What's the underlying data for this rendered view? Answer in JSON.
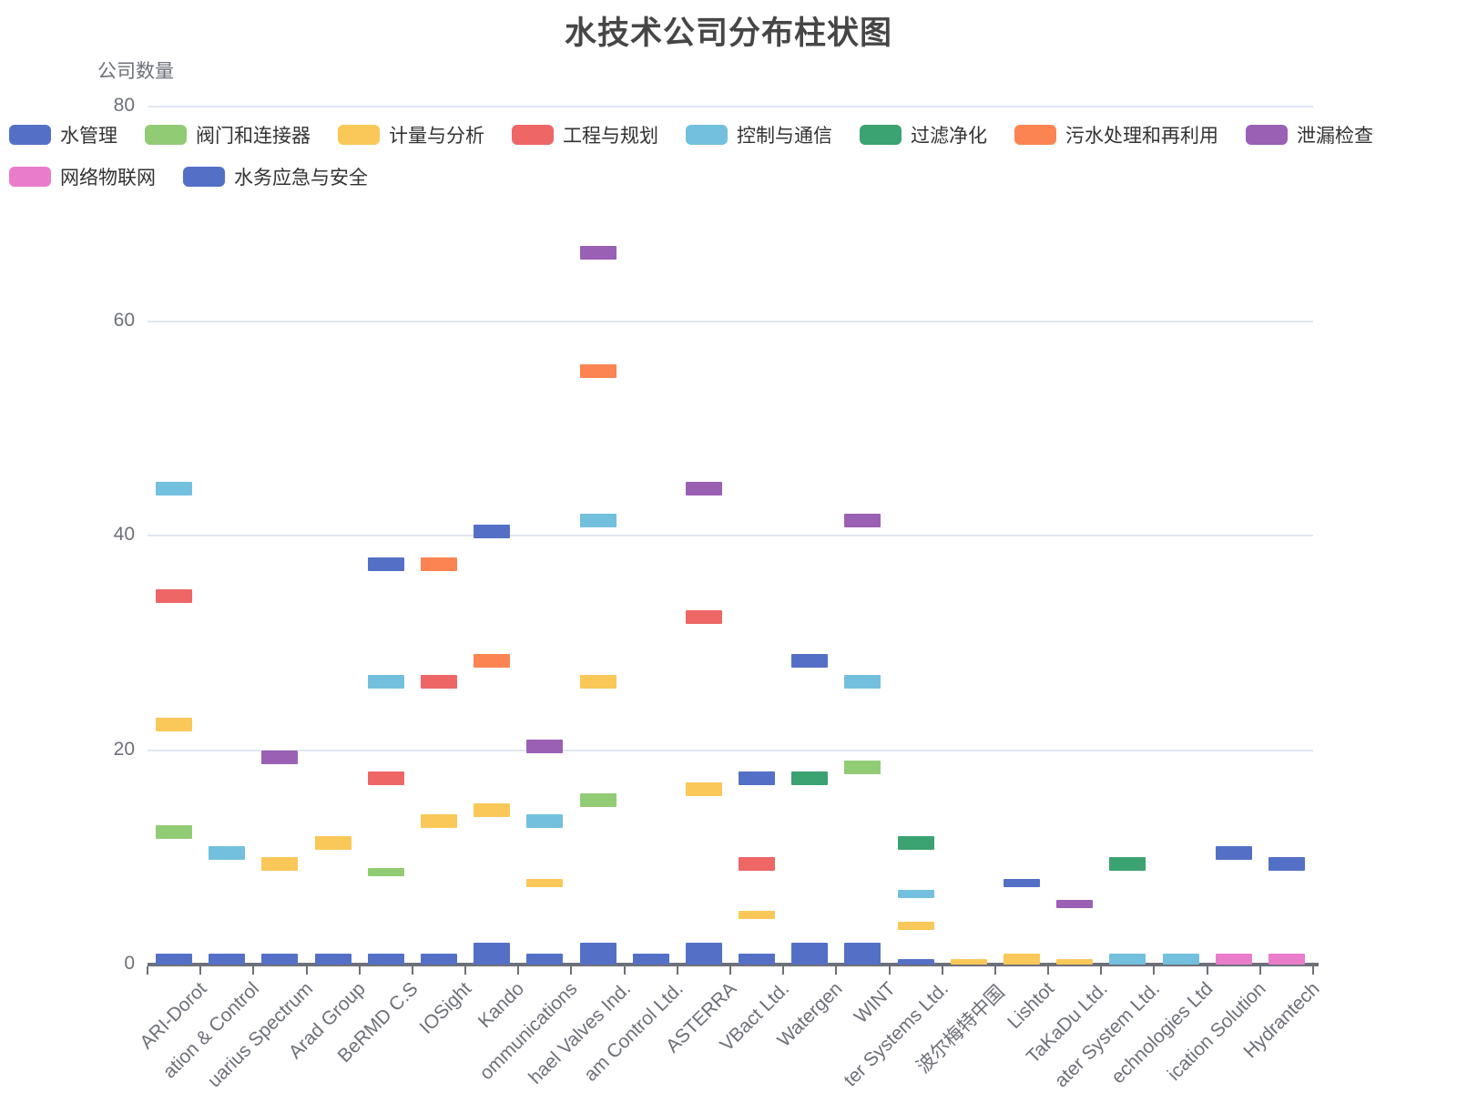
{
  "chart_data": {
    "type": "bar",
    "title": "水技术公司分布柱状图",
    "ylabel": "公司数量",
    "xlabel": "",
    "ylim": [
      0,
      80
    ],
    "y_ticks": [
      "0",
      "20",
      "40",
      "60",
      "80"
    ],
    "grid": "horizontal",
    "legend_position": "top",
    "legend_rows": [
      [
        0,
        1,
        2,
        3,
        4,
        5,
        6,
        7
      ],
      [
        8,
        9
      ]
    ],
    "categories": [
      "ARI-Dorot",
      "ation & Control",
      "uarius Spectrum",
      "Arad Group",
      "BeRMD C.S",
      "IOSight",
      "Kando",
      "ommunications",
      "hael Valves Ind.",
      "am Control Ltd.",
      "ASTERRA",
      "VBact Ltd.",
      "Watergen",
      "WINT",
      "ter Systems Ltd.",
      "波尔梅特中国",
      "Lishtot",
      "TaKaDu Ltd.",
      "ater System Ltd.",
      "echnologies Ltd",
      "ication Solution",
      "Hydrantech"
    ],
    "series": [
      {
        "name": "水管理",
        "color": "#5470c6",
        "values": [
          1,
          1,
          1,
          1,
          1,
          1,
          2,
          1,
          2,
          1,
          2,
          1,
          2,
          2,
          0.5,
          null,
          null,
          null,
          null,
          null,
          null,
          null
        ]
      },
      {
        "name": "阀门和连接器",
        "color": "#91cc75",
        "values": [
          13,
          null,
          null,
          null,
          9,
          null,
          null,
          null,
          16,
          null,
          null,
          null,
          null,
          19,
          null,
          null,
          null,
          null,
          null,
          null,
          null,
          null
        ]
      },
      {
        "name": "计量与分析",
        "color": "#fac858",
        "values": [
          23,
          null,
          10,
          12,
          null,
          14,
          15,
          8,
          27,
          null,
          17,
          5,
          null,
          null,
          4,
          0.5,
          1,
          0.5,
          null,
          null,
          null,
          null
        ]
      },
      {
        "name": "工程与规划",
        "color": "#ee6666",
        "values": [
          35,
          null,
          null,
          null,
          18,
          27,
          null,
          null,
          null,
          null,
          33,
          10,
          null,
          null,
          null,
          null,
          null,
          null,
          null,
          null,
          null,
          null
        ]
      },
      {
        "name": "控制与通信",
        "color": "#73c0de",
        "values": [
          45,
          11,
          null,
          null,
          27,
          null,
          null,
          14,
          42,
          null,
          null,
          null,
          null,
          27,
          7,
          null,
          null,
          null,
          1,
          1,
          null,
          null
        ]
      },
      {
        "name": "过滤净化",
        "color": "#3ba272",
        "values": [
          null,
          null,
          null,
          null,
          null,
          null,
          null,
          null,
          null,
          null,
          null,
          null,
          18,
          null,
          12,
          null,
          null,
          null,
          10,
          null,
          null,
          null
        ]
      },
      {
        "name": "污水处理和再利用",
        "color": "#fc8452",
        "values": [
          null,
          null,
          null,
          null,
          null,
          38,
          29,
          null,
          56,
          null,
          null,
          null,
          null,
          null,
          null,
          null,
          null,
          null,
          null,
          null,
          null,
          null
        ]
      },
      {
        "name": "泄漏检查",
        "color": "#9a60b4",
        "values": [
          null,
          null,
          20,
          null,
          null,
          null,
          null,
          21,
          67,
          null,
          45,
          null,
          null,
          42,
          null,
          null,
          null,
          6,
          null,
          null,
          null,
          null
        ]
      },
      {
        "name": "网络物联网",
        "color": "#ea7ccc",
        "values": [
          null,
          null,
          null,
          null,
          null,
          null,
          null,
          null,
          null,
          null,
          null,
          null,
          null,
          null,
          null,
          null,
          null,
          null,
          null,
          null,
          1,
          1
        ]
      },
      {
        "name": "水务应急与安全",
        "color": "#5470c6",
        "values": [
          null,
          null,
          null,
          null,
          38,
          null,
          41,
          null,
          null,
          null,
          null,
          18,
          29,
          null,
          null,
          null,
          8,
          null,
          null,
          null,
          11,
          10
        ]
      }
    ]
  }
}
